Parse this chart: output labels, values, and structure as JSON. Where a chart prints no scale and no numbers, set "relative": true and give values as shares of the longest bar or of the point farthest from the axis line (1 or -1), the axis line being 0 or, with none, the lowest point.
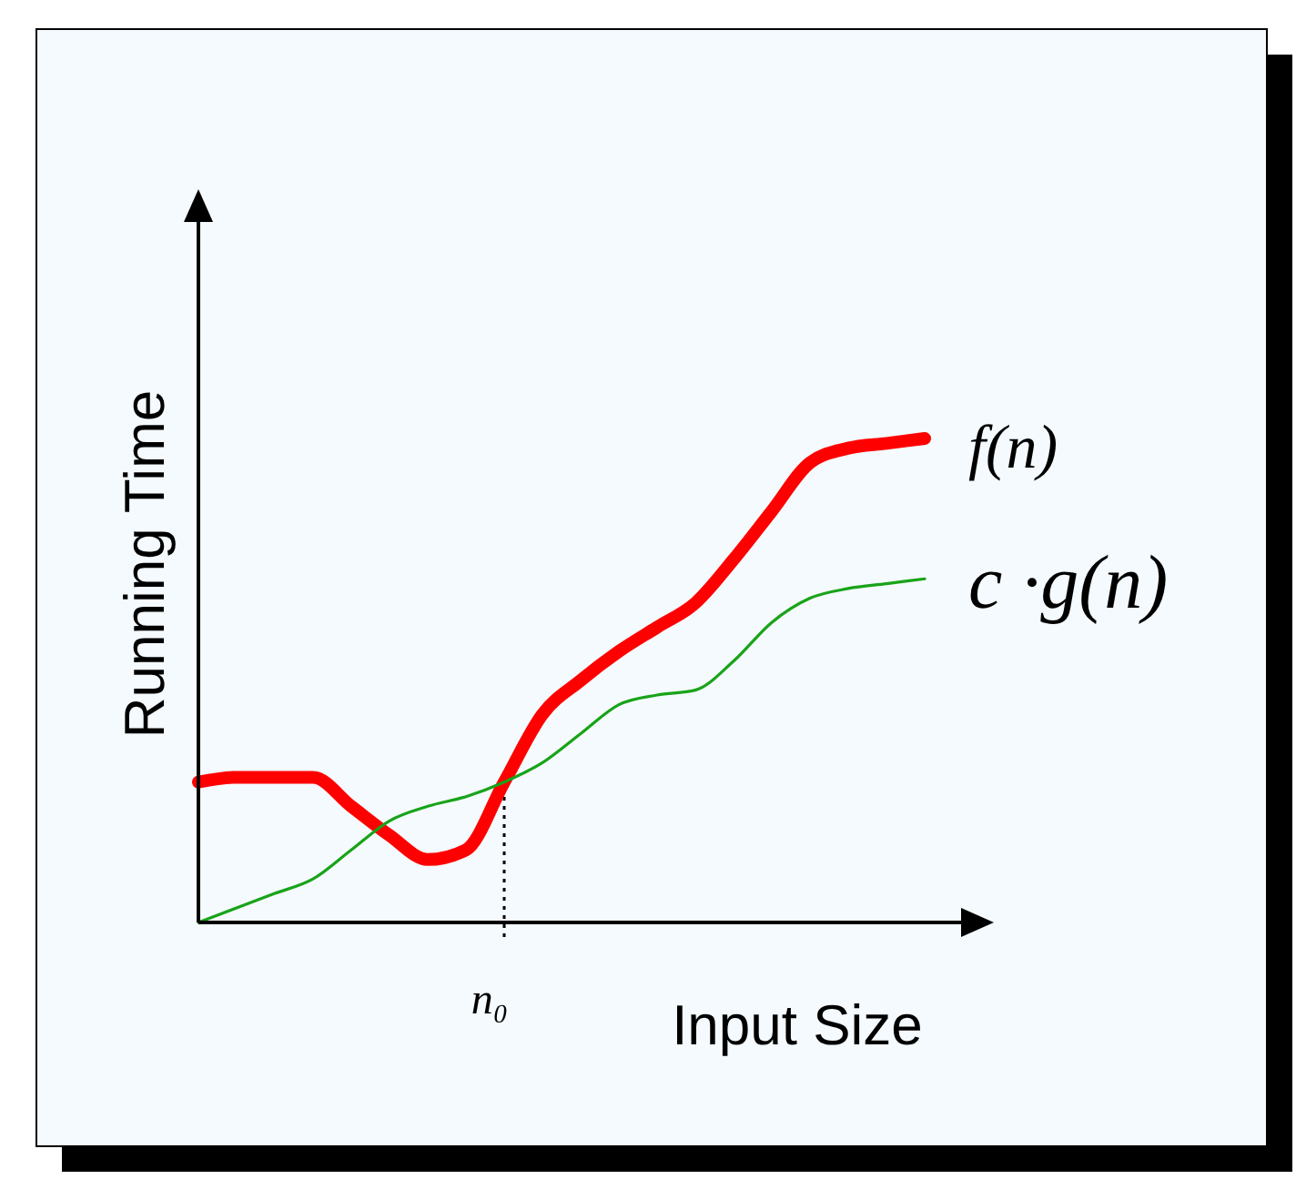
{
  "chart_data": {
    "type": "line",
    "relative": true,
    "xlabel": "Input Size",
    "ylabel": "Running Time",
    "categories": [
      null,
      null,
      null,
      null,
      null,
      null,
      null,
      null,
      null,
      null,
      null,
      null,
      null,
      null,
      null,
      null,
      null,
      null,
      null,
      null
    ],
    "series": [
      {
        "name": "f(n)",
        "color": "#ff0000",
        "values": [
          0.29,
          0.3,
          0.3,
          0.3,
          0.24,
          0.18,
          0.13,
          0.15,
          0.29,
          0.43,
          0.5,
          0.56,
          0.61,
          0.66,
          0.75,
          0.85,
          0.95,
          0.98,
          0.99,
          1
        ]
      },
      {
        "name": "c ·g(n)",
        "color": "#19a319",
        "values": [
          0,
          0.03,
          0.06,
          0.09,
          0.15,
          0.21,
          0.24,
          0.26,
          0.29,
          0.33,
          0.39,
          0.45,
          0.47,
          0.48,
          0.54,
          0.62,
          0.67,
          0.69,
          0.7,
          0.71
        ]
      }
    ],
    "annotations": [
      "n₀"
    ],
    "grid": false,
    "marker": "none",
    "line_style": "solid"
  }
}
